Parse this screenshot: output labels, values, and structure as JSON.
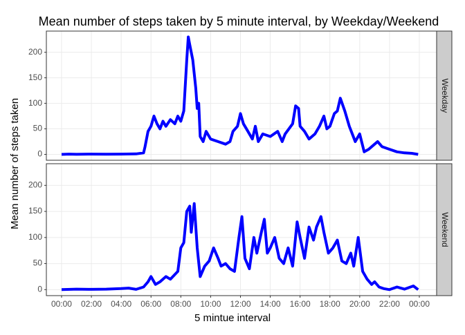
{
  "chart_data": {
    "type": "line",
    "title": "Mean number of steps taken by 5 minute interval, by Weekday/Weekend",
    "xlabel": "5 mintue interval",
    "ylabel": "Mean number of steps taken",
    "color": "#0000ff",
    "grid": true,
    "xlim": [
      -1.02,
      25.16
    ],
    "xticks": [
      {
        "value": 0,
        "label": "00:00"
      },
      {
        "value": 2,
        "label": "02:00"
      },
      {
        "value": 4,
        "label": "04:00"
      },
      {
        "value": 6,
        "label": "06:00"
      },
      {
        "value": 8,
        "label": "08:00"
      },
      {
        "value": 10,
        "label": "10:00"
      },
      {
        "value": 12,
        "label": "12:00"
      },
      {
        "value": 14,
        "label": "14:00"
      },
      {
        "value": 16,
        "label": "16:00"
      },
      {
        "value": 18,
        "label": "18:00"
      },
      {
        "value": 20,
        "label": "20:00"
      },
      {
        "value": 22,
        "label": "22:00"
      },
      {
        "value": 24,
        "label": "00:00"
      }
    ],
    "ylim": [
      -11.5,
      241.5
    ],
    "yticks": [
      0,
      50,
      100,
      150,
      200
    ],
    "panels": [
      {
        "strip": "Weekday",
        "x": [
          0,
          0.5,
          1,
          2,
          3,
          4,
          5,
          5.5,
          5.6,
          5.8,
          6,
          6.2,
          6.4,
          6.6,
          6.8,
          7,
          7.3,
          7.6,
          7.8,
          8,
          8.2,
          8.4,
          8.5,
          8.6,
          8.8,
          9,
          9.1,
          9.2,
          9.3,
          9.5,
          9.7,
          10,
          10.5,
          11,
          11.3,
          11.5,
          11.8,
          12,
          12.2,
          12.5,
          12.8,
          13,
          13.2,
          13.5,
          14,
          14.5,
          14.8,
          15,
          15.5,
          15.7,
          15.9,
          16,
          16.3,
          16.6,
          17,
          17.3,
          17.6,
          17.8,
          18,
          18.3,
          18.5,
          18.7,
          19,
          19.3,
          19.5,
          19.7,
          20,
          20.3,
          20.6,
          21,
          21.2,
          21.5,
          22,
          22.5,
          23,
          23.5,
          23.92
        ],
        "values": [
          0,
          0.5,
          0.2,
          0.5,
          0.3,
          0.5,
          1,
          3,
          15,
          45,
          55,
          75,
          60,
          50,
          65,
          55,
          68,
          60,
          75,
          65,
          85,
          185,
          230,
          215,
          185,
          130,
          90,
          100,
          35,
          25,
          45,
          30,
          25,
          20,
          25,
          45,
          55,
          80,
          60,
          45,
          30,
          55,
          25,
          40,
          35,
          45,
          25,
          40,
          60,
          95,
          90,
          55,
          45,
          30,
          40,
          55,
          75,
          50,
          55,
          80,
          85,
          110,
          85,
          55,
          40,
          25,
          40,
          5,
          10,
          20,
          25,
          15,
          10,
          5,
          3,
          2,
          0
        ]
      },
      {
        "strip": "Weekend",
        "x": [
          0,
          1,
          2,
          3,
          4,
          4.5,
          5,
          5.5,
          5.8,
          6,
          6.3,
          6.6,
          7,
          7.3,
          7.8,
          8,
          8.2,
          8.4,
          8.6,
          8.7,
          8.9,
          9.1,
          9.3,
          9.6,
          9.9,
          10.2,
          10.5,
          10.7,
          11,
          11.3,
          11.6,
          11.9,
          12.1,
          12.3,
          12.6,
          12.9,
          13.1,
          13.4,
          13.6,
          13.8,
          14,
          14.3,
          14.6,
          14.9,
          15.2,
          15.5,
          15.8,
          16,
          16.3,
          16.6,
          16.9,
          17.1,
          17.4,
          17.6,
          17.9,
          18.2,
          18.5,
          18.8,
          19.1,
          19.4,
          19.6,
          19.9,
          20.2,
          20.5,
          20.8,
          21,
          21.3,
          21.6,
          22,
          22.5,
          23,
          23.6,
          23.92
        ],
        "values": [
          0.2,
          1,
          0.5,
          1,
          2,
          3,
          0.5,
          5,
          15,
          25,
          10,
          15,
          25,
          20,
          35,
          80,
          90,
          150,
          160,
          110,
          165,
          80,
          25,
          45,
          55,
          80,
          60,
          45,
          50,
          40,
          35,
          100,
          140,
          60,
          40,
          100,
          70,
          110,
          135,
          70,
          80,
          100,
          60,
          50,
          80,
          45,
          130,
          100,
          60,
          120,
          95,
          120,
          140,
          110,
          70,
          80,
          95,
          55,
          50,
          70,
          45,
          100,
          35,
          20,
          10,
          15,
          5,
          2,
          0,
          5,
          1,
          7,
          0
        ]
      }
    ]
  }
}
